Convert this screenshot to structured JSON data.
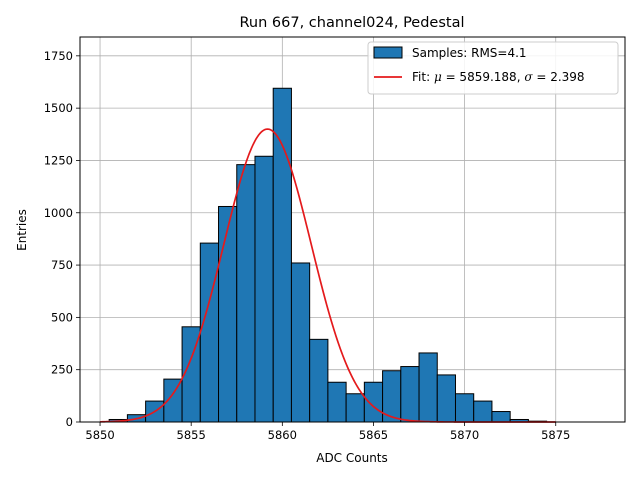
{
  "chart_data": {
    "type": "bar",
    "title": "Run 667, channel024, Pedestal",
    "xlabel": "ADC Counts",
    "ylabel": "Entries",
    "xlim": [
      5848.9,
      5878.8
    ],
    "ylim": [
      0,
      1840
    ],
    "xticks": [
      5850,
      5855,
      5860,
      5865,
      5870,
      5875
    ],
    "yticks": [
      0,
      250,
      500,
      750,
      1000,
      1250,
      1500,
      1750
    ],
    "grid": true,
    "legend_position": "top-right",
    "bin_width": 1,
    "histogram": {
      "name": "Samples: RMS=4.1",
      "color": "#1f77b4",
      "bins": [
        {
          "x": 5851,
          "value": 12
        },
        {
          "x": 5852,
          "value": 35
        },
        {
          "x": 5853,
          "value": 100
        },
        {
          "x": 5854,
          "value": 205
        },
        {
          "x": 5855,
          "value": 455
        },
        {
          "x": 5856,
          "value": 855
        },
        {
          "x": 5857,
          "value": 1030
        },
        {
          "x": 5858,
          "value": 1230
        },
        {
          "x": 5859,
          "value": 1270
        },
        {
          "x": 5860,
          "value": 1595
        },
        {
          "x": 5861,
          "value": 760
        },
        {
          "x": 5862,
          "value": 395
        },
        {
          "x": 5863,
          "value": 190
        },
        {
          "x": 5864,
          "value": 135
        },
        {
          "x": 5865,
          "value": 190
        },
        {
          "x": 5866,
          "value": 245
        },
        {
          "x": 5867,
          "value": 265
        },
        {
          "x": 5868,
          "value": 330
        },
        {
          "x": 5869,
          "value": 225
        },
        {
          "x": 5870,
          "value": 135
        },
        {
          "x": 5871,
          "value": 100
        },
        {
          "x": 5872,
          "value": 50
        },
        {
          "x": 5873,
          "value": 12
        },
        {
          "x": 5874,
          "value": 4
        }
      ]
    },
    "fit": {
      "name_prefix": "Fit: ",
      "mu_label": "μ",
      "sigma_label": "σ",
      "mu_text": " = 5859.188, ",
      "sigma_text": " = 2.398",
      "mu": 5859.188,
      "sigma": 2.398,
      "amplitude": 1400,
      "x_range": [
        5850,
        5875
      ],
      "color": "#e41a1c"
    }
  }
}
